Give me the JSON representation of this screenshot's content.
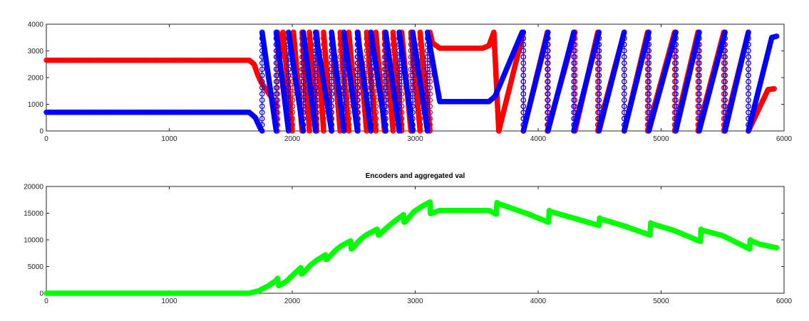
{
  "figure": {
    "background": "#ffffff"
  },
  "chart_data": [
    {
      "type": "line",
      "title": "",
      "xlabel": "",
      "ylabel": "",
      "xlim": [
        0,
        6000
      ],
      "ylim": [
        0,
        4000
      ],
      "xticks": [
        "0",
        "1000",
        "2000",
        "3000",
        "4000",
        "5000",
        "6000"
      ],
      "yticks": [
        "0",
        "1000",
        "2000",
        "3000",
        "4000"
      ],
      "grid": false,
      "legend": "none",
      "marker": "circle",
      "series": [
        {
          "color": "#ff0000",
          "x": [
            0,
            1650,
            1690,
            1720,
            1750,
            1870,
            1880,
            1880,
            1925,
            1925,
            2000,
            2010,
            2010,
            2080,
            2080,
            2140,
            2140,
            2200,
            2200,
            2255,
            2255,
            2320,
            2320,
            2390,
            2390,
            2460,
            2460,
            2535,
            2535,
            2605,
            2605,
            2680,
            2680,
            2750,
            2750,
            2820,
            2820,
            2890,
            2890,
            2965,
            2965,
            3040,
            3040,
            3120,
            3120,
            3140,
            3200,
            3550,
            3600,
            3640,
            3680,
            3680,
            3880,
            3880,
            4075,
            4075,
            4300,
            4300,
            4485,
            4485,
            4700,
            4700,
            4890,
            4890,
            5110,
            5110,
            5300,
            5300,
            5510,
            5510,
            5710,
            5710,
            5870,
            5920
          ],
          "y": [
            2650,
            2650,
            2500,
            2100,
            1800,
            1000,
            0,
            3700,
            2800,
            3700,
            0,
            3700,
            3700,
            0,
            3700,
            0,
            3700,
            0,
            3700,
            0,
            3700,
            0,
            3700,
            0,
            3700,
            0,
            3700,
            0,
            3700,
            0,
            3700,
            0,
            3700,
            0,
            3700,
            0,
            3700,
            0,
            3700,
            0,
            3700,
            0,
            3700,
            0,
            3700,
            3300,
            3100,
            3100,
            3200,
            3700,
            0,
            0,
            3700,
            0,
            3700,
            0,
            3700,
            0,
            3700,
            0,
            3700,
            0,
            3700,
            0,
            3700,
            0,
            3700,
            0,
            3700,
            0,
            3700,
            0,
            1550,
            1580
          ]
        },
        {
          "color": "#0000ff",
          "x": [
            0,
            1650,
            1700,
            1740,
            1755,
            1755,
            1870,
            1870,
            1970,
            1970,
            2090,
            2090,
            2190,
            2190,
            2320,
            2320,
            2420,
            2420,
            2530,
            2530,
            2640,
            2640,
            2760,
            2760,
            2870,
            2870,
            2980,
            2980,
            3100,
            3100,
            3200,
            3600,
            3650,
            3870,
            3880,
            3880,
            4080,
            4080,
            4290,
            4290,
            4495,
            4495,
            4700,
            4700,
            4900,
            4900,
            5120,
            5120,
            5310,
            5310,
            5520,
            5520,
            5710,
            5710,
            5900,
            5940
          ],
          "y": [
            700,
            700,
            500,
            100,
            0,
            3700,
            0,
            3700,
            0,
            3700,
            0,
            3700,
            0,
            3700,
            0,
            3700,
            0,
            3700,
            0,
            3700,
            0,
            3700,
            0,
            3700,
            0,
            3700,
            0,
            3700,
            0,
            3700,
            1100,
            1100,
            1300,
            3700,
            3700,
            0,
            3700,
            0,
            3700,
            0,
            3700,
            0,
            3700,
            0,
            3700,
            0,
            3700,
            0,
            3700,
            0,
            3700,
            0,
            3700,
            0,
            3500,
            3550
          ]
        }
      ]
    },
    {
      "type": "line",
      "title": "Encoders and aggregated val",
      "xlabel": "",
      "ylabel": "",
      "xlim": [
        0,
        6000
      ],
      "ylim": [
        0,
        20000
      ],
      "xticks": [
        "0",
        "1000",
        "2000",
        "3000",
        "4000",
        "5000",
        "6000"
      ],
      "yticks": [
        "0",
        "5000",
        "10000",
        "15000",
        "20000"
      ],
      "grid": false,
      "legend": "none",
      "marker": "circle",
      "series": [
        {
          "color": "#00ff00",
          "x": [
            0,
            1650,
            1720,
            1800,
            1870,
            1880,
            1890,
            1950,
            2000,
            2070,
            2075,
            2085,
            2150,
            2200,
            2270,
            2275,
            2285,
            2350,
            2400,
            2475,
            2480,
            2490,
            2550,
            2600,
            2690,
            2700,
            2710,
            2780,
            2850,
            2905,
            2910,
            2920,
            2990,
            3050,
            3120,
            3125,
            3135,
            3200,
            3600,
            3660,
            3665,
            3675,
            3750,
            3900,
            4085,
            4090,
            4100,
            4300,
            4495,
            4500,
            4510,
            4700,
            4910,
            4915,
            4925,
            5100,
            5320,
            5325,
            5335,
            5500,
            5720,
            5725,
            5735,
            5800,
            5940
          ],
          "y": [
            0,
            0,
            400,
            1300,
            2400,
            2800,
            1400,
            2200,
            3300,
            4800,
            3600,
            3700,
            5300,
            6200,
            7200,
            6300,
            6400,
            8000,
            8900,
            9800,
            8300,
            8400,
            10000,
            10900,
            12000,
            10900,
            11000,
            12500,
            13800,
            14700,
            13300,
            13400,
            15300,
            16200,
            17100,
            14900,
            15000,
            15500,
            15500,
            14800,
            17000,
            16800,
            16200,
            15000,
            13300,
            15500,
            15300,
            14000,
            12700,
            14100,
            13900,
            12600,
            10900,
            13200,
            13000,
            11800,
            9700,
            12000,
            11800,
            10800,
            8300,
            10000,
            9800,
            9200,
            8500
          ]
        }
      ]
    }
  ]
}
